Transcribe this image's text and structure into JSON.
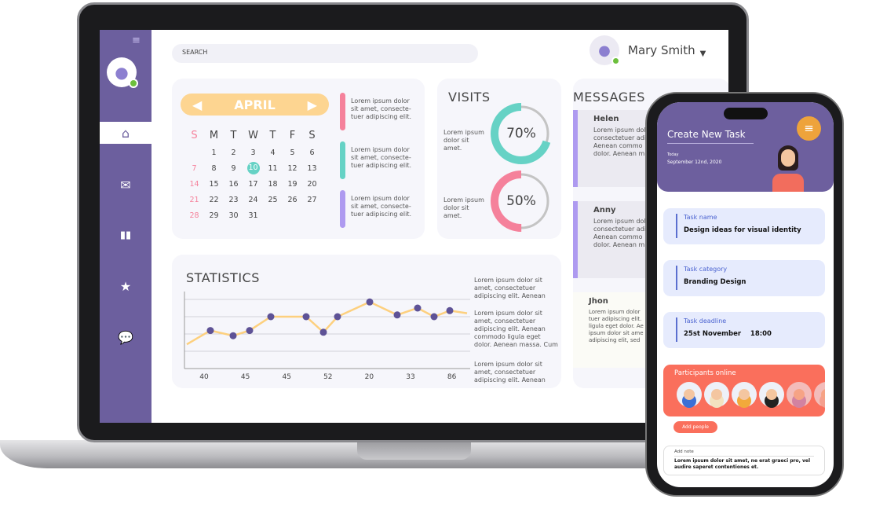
{
  "header": {
    "search_placeholder": "SEARCH",
    "user_name": "Mary Smith"
  },
  "sidebar": {
    "items": [
      {
        "icon": "home-icon"
      },
      {
        "icon": "mail-icon"
      },
      {
        "icon": "bar-chart-icon"
      },
      {
        "icon": "star-icon"
      },
      {
        "icon": "chat-icon"
      }
    ]
  },
  "calendar": {
    "month": "APRIL",
    "weekdays": [
      "S",
      "M",
      "T",
      "W",
      "T",
      "F",
      "S"
    ],
    "weeks": [
      [
        "",
        "1",
        "2",
        "3",
        "4",
        "5",
        "6"
      ],
      [
        "7",
        "8",
        "9",
        "10",
        "11",
        "12",
        "13"
      ],
      [
        "14",
        "15",
        "16",
        "17",
        "18",
        "19",
        "20"
      ],
      [
        "21",
        "22",
        "23",
        "24",
        "25",
        "26",
        "27"
      ],
      [
        "28",
        "29",
        "30",
        "31",
        "",
        "",
        ""
      ]
    ],
    "selected": "10",
    "notes": [
      {
        "text": "Lorem ipsum dolor sit amet, consecte-tuer adipiscing elit.",
        "color": "#f5819b"
      },
      {
        "text": "Lorem ipsum dolor sit amet, consecte-tuer adipiscing elit.",
        "color": "#66d2c5"
      },
      {
        "text": "Lorem ipsum dolor sit amet, consecte-tuer adipiscing elit.",
        "color": "#ae9af0"
      }
    ]
  },
  "visits": {
    "title": "VISITS",
    "items": [
      {
        "label": "Lorem ipsum dolor sit amet.",
        "value": "70%",
        "percent": 70,
        "color": "#66d2c5"
      },
      {
        "label": "Lorem ipsum dolor sit amet.",
        "value": "50%",
        "percent": 50,
        "color": "#f5819b"
      }
    ]
  },
  "messages": {
    "title": "MESSAGES",
    "items": [
      {
        "name": "Helen",
        "text": "Lorem ipsum dolor consectetuer adi Aenean commo dolor. Aenean m"
      },
      {
        "name": "Anny",
        "text": "Lorem ipsum dolor consectetuer adi Aenean commo dolor. Aenean m"
      },
      {
        "name": "Jhon",
        "text": "Lorem ipsum dolor tuer adipiscing elit. ligula eget dolor. Ae ipsum dolor sit ame adipiscing elit, sed"
      }
    ]
  },
  "statistics": {
    "title": "STATISTICS",
    "notes": [
      "Lorem ipsum dolor sit amet, consectetuer adipiscing elit. Aenean",
      "Lorem ipsum dolor sit amet, consectetuer adipiscing elit. Aenean commodo ligula eget dolor. Aenean massa. Cum",
      "Lorem ipsum dolor sit amet, consectetuer adipiscing elit. Aenean"
    ]
  },
  "chart_data": {
    "type": "line",
    "x_tick_labels": [
      "40",
      "45",
      "45",
      "52",
      "20",
      "33",
      "86"
    ],
    "values": [
      1.4,
      2.2,
      1.9,
      2.2,
      3.0,
      3.0,
      2.1,
      3.0,
      3.85,
      3.1,
      3.5,
      3.0,
      3.35,
      3.2
    ],
    "markers": [
      false,
      true,
      true,
      true,
      true,
      true,
      true,
      true,
      true,
      true,
      true,
      true,
      true,
      false
    ],
    "ylim": [
      0,
      4
    ],
    "grid": true,
    "line_color": "#fdd07e",
    "marker_color": "#5e5296"
  },
  "phone": {
    "title": "Create New Task",
    "today_label": "Today",
    "date": "September 12nd, 2020",
    "fields": [
      {
        "label": "Task name",
        "value": "Design ideas for visual identity"
      },
      {
        "label": "Task category",
        "value": "Branding Design"
      },
      {
        "label": "Task deadline",
        "value": "25st November    18:00"
      }
    ],
    "participants_title": "Participants online",
    "add_people": "Add people",
    "note_label": "Add note",
    "note_text": "Lorem ipsum dolor sit amet, ne erat graeci pro, vel audire saperet contentiones et."
  }
}
